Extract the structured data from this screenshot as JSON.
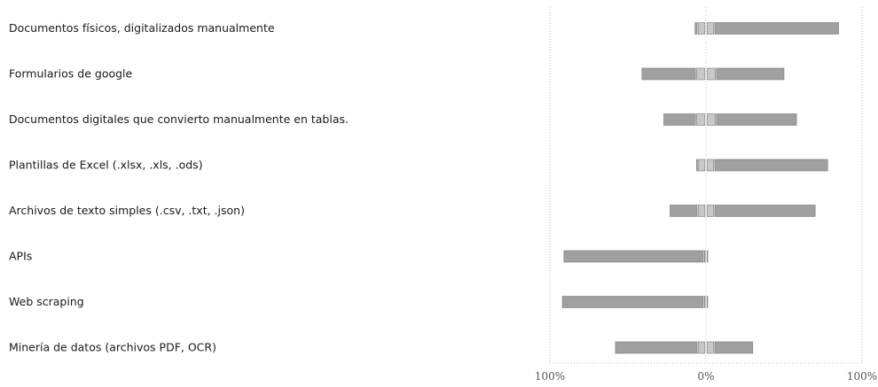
{
  "chart_data": {
    "type": "bar",
    "title": "",
    "xlabel": "",
    "ylabel": "",
    "xlim": [
      -100,
      100
    ],
    "grid": false,
    "legend": "none",
    "tick_values": [
      -100,
      0,
      100
    ],
    "tick_labels": [
      "100%",
      "0%",
      "100%"
    ],
    "categories": [
      "Documentos físicos, digitalizados manualmente",
      "Formularios de google",
      "Documentos digitales que convierto manualmente en tablas.",
      "Plantillas de Excel (.xlsx, .xls, .ods)",
      "Archivos de texto simples (.csv, .txt, .json)",
      "APIs",
      "Web scraping",
      "Minería de datos (archivos PDF, OCR)"
    ],
    "series": [
      {
        "values": [
          2,
          35,
          21,
          1,
          18,
          90,
          91,
          53
        ]
      },
      {
        "values": [
          5,
          6,
          6,
          5,
          5,
          1,
          1,
          5
        ]
      },
      {
        "values": [
          5,
          6,
          6,
          5,
          5,
          1,
          1,
          5
        ]
      },
      {
        "values": [
          80,
          44,
          52,
          73,
          65,
          0,
          0,
          25
        ]
      }
    ],
    "colors": [
      "#a0a0a0",
      "#c8c8c8",
      "#c8c8c8",
      "#a0a0a0"
    ]
  }
}
